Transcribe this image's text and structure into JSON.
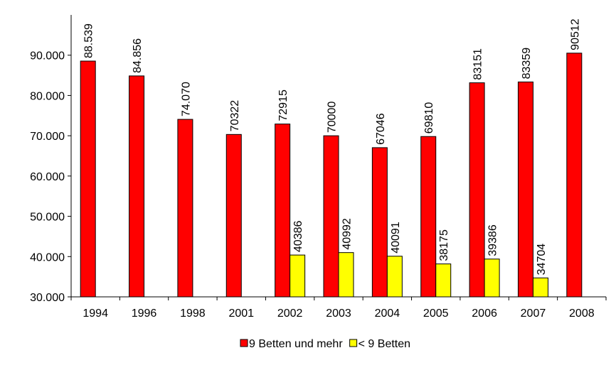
{
  "chart_data": {
    "type": "bar",
    "categories": [
      "1994",
      "1996",
      "1998",
      "2001",
      "2002",
      "2003",
      "2004",
      "2005",
      "2006",
      "2007",
      "2008"
    ],
    "series": [
      {
        "name": "9 Betten und mehr",
        "color": "#ff0000",
        "values": [
          88539,
          84856,
          74070,
          70322,
          72915,
          70000,
          67046,
          69810,
          83151,
          83359,
          90512
        ],
        "value_labels": [
          "88.539",
          "84.856",
          "74.070",
          "70322",
          "72915",
          "70000",
          "67046",
          "69810",
          "83151",
          "83359",
          "90512"
        ]
      },
      {
        "name": "< 9 Betten",
        "color": "#ffff00",
        "values": [
          null,
          null,
          null,
          null,
          40386,
          40992,
          40091,
          38175,
          39386,
          34704,
          null
        ]
      }
    ],
    "ylim": [
      30000,
      100000
    ],
    "yticks": [
      {
        "value": 30000,
        "label": "30.000"
      },
      {
        "value": 40000,
        "label": "40.000"
      },
      {
        "value": 50000,
        "label": "50.000"
      },
      {
        "value": 60000,
        "label": "60.000"
      },
      {
        "value": 70000,
        "label": "70.000"
      },
      {
        "value": 80000,
        "label": "80.000"
      },
      {
        "value": 90000,
        "label": "90.000"
      }
    ],
    "legend": "bottom"
  }
}
